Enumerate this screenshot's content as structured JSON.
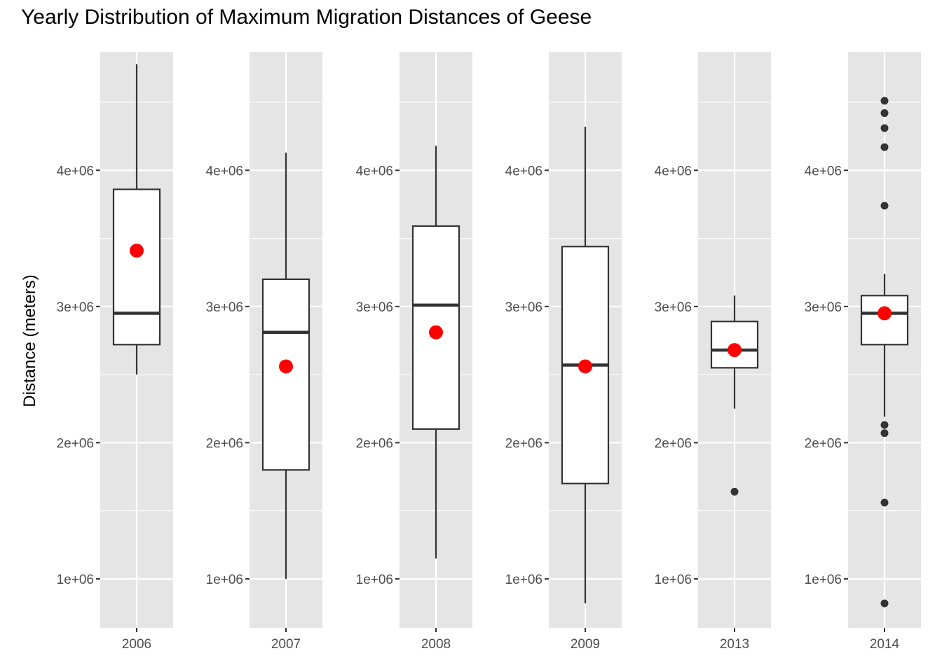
{
  "chart_data": {
    "type": "boxplot",
    "title": "Yearly Distribution of Maximum Migration Distances of Geese",
    "xlabel": "",
    "ylabel": "Distance (meters)",
    "grid": true,
    "facets": "per-year panels, each with its own y-axis",
    "y_tick_values": [
      1000000,
      2000000,
      3000000,
      4000000
    ],
    "y_tick_labels": [
      "1e+06",
      "2e+06",
      "3e+06",
      "4e+06"
    ],
    "mean_marker": "red point",
    "panels": [
      {
        "year": "2006",
        "ylim": [
          640000,
          4870000
        ],
        "whisker_low": 2500000,
        "q1": 2720000,
        "median": 2950000,
        "q3": 3860000,
        "whisker_high": 4780000,
        "mean": 3410000,
        "outliers": []
      },
      {
        "year": "2007",
        "ylim": [
          640000,
          4870000
        ],
        "whisker_low": 1000000,
        "q1": 1800000,
        "median": 2810000,
        "q3": 3200000,
        "whisker_high": 4130000,
        "mean": 2560000,
        "outliers": []
      },
      {
        "year": "2008",
        "ylim": [
          640000,
          4870000
        ],
        "whisker_low": 1150000,
        "q1": 2100000,
        "median": 3010000,
        "q3": 3590000,
        "whisker_high": 4180000,
        "mean": 2810000,
        "outliers": []
      },
      {
        "year": "2009",
        "ylim": [
          640000,
          4870000
        ],
        "whisker_low": 820000,
        "q1": 1700000,
        "median": 2570000,
        "q3": 3440000,
        "whisker_high": 4320000,
        "mean": 2560000,
        "outliers": []
      },
      {
        "year": "2013",
        "ylim": [
          640000,
          4870000
        ],
        "whisker_low": 2250000,
        "q1": 2550000,
        "median": 2680000,
        "q3": 2890000,
        "whisker_high": 3080000,
        "mean": 2680000,
        "outliers": [
          1640000
        ]
      },
      {
        "year": "2014",
        "ylim": [
          640000,
          4870000
        ],
        "whisker_low": 2190000,
        "q1": 2720000,
        "median": 2950000,
        "q3": 3080000,
        "whisker_high": 3240000,
        "mean": 2950000,
        "outliers": [
          4510000,
          4420000,
          4310000,
          4170000,
          3740000,
          2130000,
          2070000,
          1560000,
          820000
        ]
      }
    ],
    "colors": {
      "panel_bg": "#e5e5e5",
      "grid": "#ffffff",
      "box_fill": "#ffffff",
      "box_line": "#333333",
      "whisker": "#333333",
      "outlier": "#333333",
      "mean": "#ff0000",
      "tick_label": "#4d4d4d",
      "tick_mark": "#333333"
    }
  }
}
